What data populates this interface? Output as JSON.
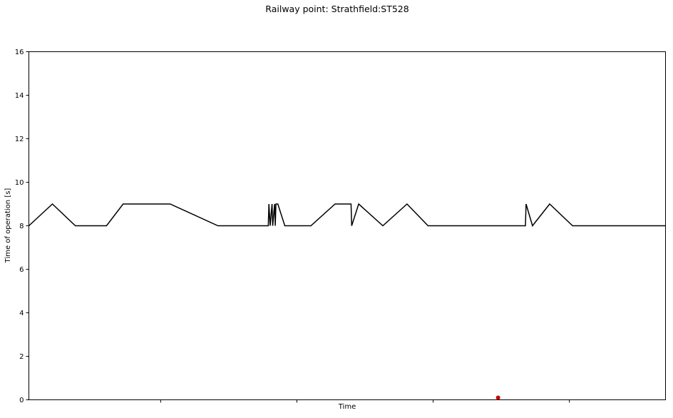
{
  "chart_data": {
    "type": "line",
    "title": "Railway point: Strathfield:ST528",
    "xlabel": "Time",
    "ylabel": "Time of operation [s]",
    "ylim": [
      0,
      16
    ],
    "yticks": [
      0,
      2,
      4,
      6,
      8,
      10,
      12,
      14,
      16
    ],
    "xlim": [
      0,
      100
    ],
    "xtick_positions": [
      20.7,
      42.1,
      63.5,
      84.9
    ],
    "grid": false,
    "colors": {
      "line": "#000000",
      "marker": "#cc0000",
      "frame": "#000000"
    },
    "series": [
      {
        "type": "line",
        "x": [
          0,
          3.7,
          7.3,
          12.2,
          14.8,
          22.2,
          29.7,
          37.6,
          37.7,
          37.9,
          38.2,
          38.3,
          38.6,
          38.7,
          38.8,
          39.1,
          40.2,
          44.3,
          48.1,
          50.6,
          50.7,
          51.8,
          55.6,
          59.4,
          62.7,
          78.0,
          78.1,
          79.1,
          81.8,
          85.4,
          100
        ],
        "y": [
          8,
          9,
          8,
          8,
          9,
          9,
          8,
          8,
          9,
          8,
          9,
          8,
          9,
          8,
          9,
          9,
          8,
          8,
          9,
          9,
          8,
          9,
          8,
          9,
          8,
          8,
          9,
          8,
          9,
          8,
          8
        ]
      },
      {
        "type": "scatter",
        "x": [
          73.7
        ],
        "y": [
          0.1
        ]
      }
    ]
  }
}
